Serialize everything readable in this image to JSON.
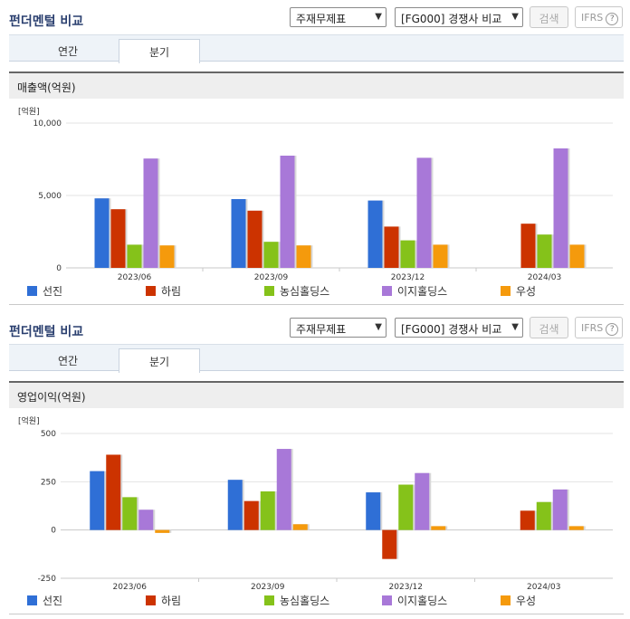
{
  "sections": [
    {
      "title": "펀더멘털 비교",
      "select1": "주재무제표",
      "select2": "[FG000] 경쟁사 비교",
      "search_label": "검색",
      "ifrs_label": "IFRS",
      "help": "?",
      "tabs": [
        "연간",
        "분기"
      ],
      "subhead": "매출액(억원)",
      "unit": "[억원]"
    },
    {
      "title": "펀더멘털 비교",
      "select1": "주재무제표",
      "select2": "[FG000] 경쟁사 비교",
      "search_label": "검색",
      "ifrs_label": "IFRS",
      "help": "?",
      "tabs": [
        "연간",
        "분기"
      ],
      "subhead": "영업이익(억원)",
      "unit": "[억원]"
    }
  ],
  "colors": {
    "선진": "#2f6fd6",
    "하림": "#cc3300",
    "농심홀딩스": "#85c21a",
    "이지홀딩스": "#a878d8",
    "우성": "#f59a0c"
  },
  "chart_data": [
    {
      "type": "bar",
      "categories": [
        "2023/06",
        "2023/09",
        "2023/12",
        "2024/03"
      ],
      "series": [
        {
          "name": "선진",
          "values": [
            4800,
            4750,
            4650,
            null
          ]
        },
        {
          "name": "하림",
          "values": [
            4050,
            3950,
            2850,
            3050
          ]
        },
        {
          "name": "농심홀딩스",
          "values": [
            1600,
            1800,
            1900,
            2300
          ]
        },
        {
          "name": "이지홀딩스",
          "values": [
            7550,
            7750,
            7600,
            8250
          ]
        },
        {
          "name": "우성",
          "values": [
            1550,
            1550,
            1600,
            1600
          ]
        }
      ],
      "yticks": [
        "10,000",
        "5,000",
        "0"
      ],
      "ylim": [
        0,
        10000
      ],
      "grid": true,
      "legend": "bottom"
    },
    {
      "type": "bar",
      "categories": [
        "2023/06",
        "2023/09",
        "2023/12",
        "2024/03"
      ],
      "series": [
        {
          "name": "선진",
          "values": [
            305,
            260,
            195,
            null
          ]
        },
        {
          "name": "하림",
          "values": [
            390,
            150,
            -150,
            100
          ]
        },
        {
          "name": "농심홀딩스",
          "values": [
            170,
            200,
            235,
            145
          ]
        },
        {
          "name": "이지홀딩스",
          "values": [
            105,
            420,
            295,
            210
          ]
        },
        {
          "name": "우성",
          "values": [
            -15,
            30,
            20,
            20
          ]
        }
      ],
      "yticks": [
        "500",
        "250",
        "0",
        "-250"
      ],
      "ylim": [
        -250,
        500
      ],
      "grid": true,
      "legend": "bottom"
    }
  ]
}
